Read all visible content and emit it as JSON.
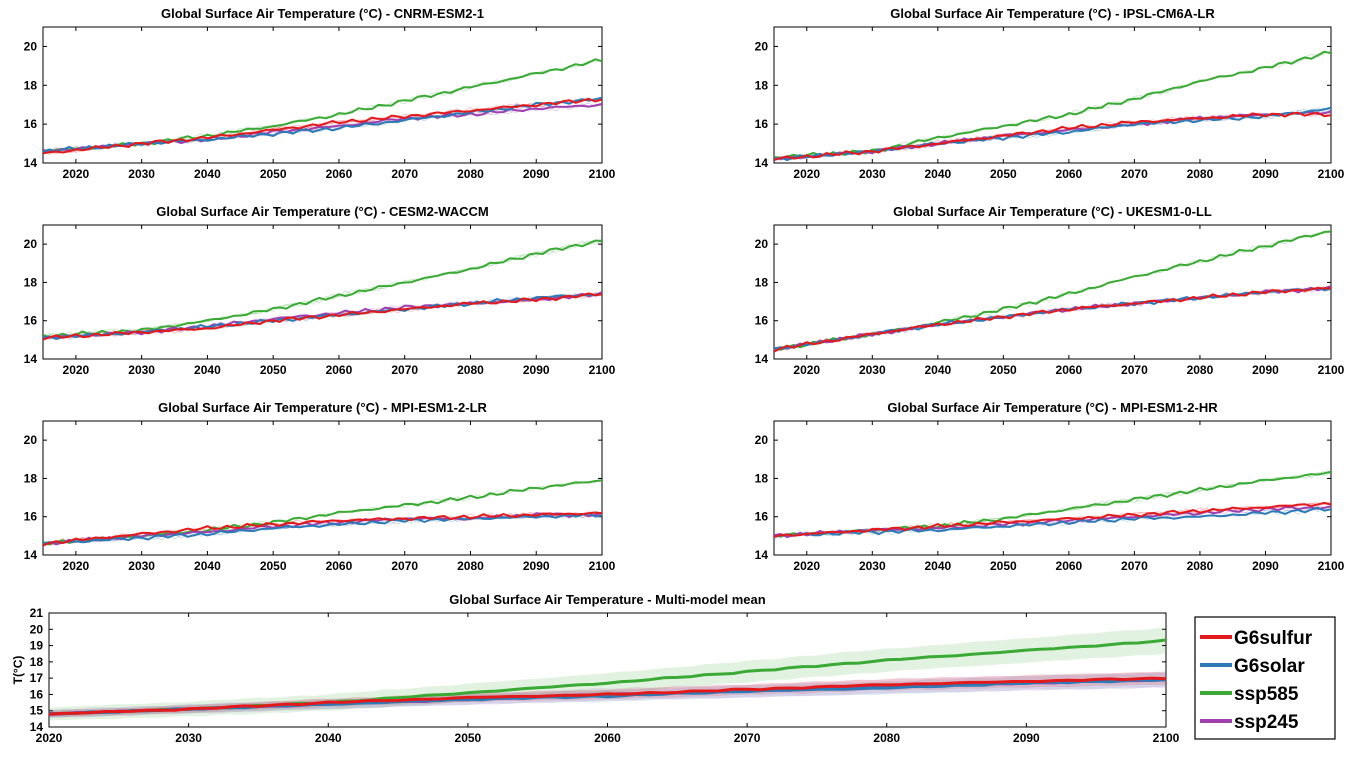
{
  "colors": {
    "G6sulfur": "#e31a1c",
    "G6solar": "#2c7bb6",
    "ssp585": "#3aaa35",
    "ssp245": "#a040b0"
  },
  "legend": [
    "G6sulfur",
    "G6solar",
    "ssp585",
    "ssp245"
  ],
  "chart_data": [
    {
      "type": "line",
      "title": "Global Surface Air Temperature (°C) - CNRM-ESM2-1",
      "xlim": [
        2015,
        2100
      ],
      "ylim": [
        14,
        21
      ],
      "xticks": [
        2020,
        2030,
        2040,
        2050,
        2060,
        2070,
        2080,
        2090,
        2100
      ],
      "yticks": [
        14,
        16,
        18,
        20
      ],
      "x": [
        2015,
        2030,
        2040,
        2050,
        2060,
        2070,
        2080,
        2090,
        2100
      ],
      "series": [
        {
          "name": "G6sulfur",
          "values": [
            14.5,
            15.0,
            15.3,
            15.7,
            16.1,
            16.4,
            16.7,
            17.0,
            17.3
          ]
        },
        {
          "name": "G6solar",
          "values": [
            14.6,
            15.0,
            15.2,
            15.5,
            15.8,
            16.2,
            16.6,
            17.0,
            17.3
          ]
        },
        {
          "name": "ssp585",
          "values": [
            14.6,
            15.0,
            15.4,
            15.9,
            16.5,
            17.2,
            17.9,
            18.6,
            19.3
          ]
        },
        {
          "name": "ssp245",
          "values": [
            14.6,
            15.0,
            15.2,
            15.6,
            15.9,
            16.3,
            16.5,
            16.8,
            17.0
          ]
        }
      ]
    },
    {
      "type": "line",
      "title": "Global Surface Air Temperature (°C) - IPSL-CM6A-LR",
      "xlim": [
        2015,
        2100
      ],
      "ylim": [
        14,
        21
      ],
      "xticks": [
        2020,
        2030,
        2040,
        2050,
        2060,
        2070,
        2080,
        2090,
        2100
      ],
      "yticks": [
        14,
        16,
        18,
        20
      ],
      "x": [
        2015,
        2030,
        2040,
        2050,
        2060,
        2070,
        2080,
        2090,
        2100
      ],
      "series": [
        {
          "name": "G6sulfur",
          "values": [
            14.2,
            14.6,
            15.0,
            15.4,
            15.8,
            16.1,
            16.3,
            16.5,
            16.5
          ]
        },
        {
          "name": "G6solar",
          "values": [
            14.2,
            14.6,
            15.0,
            15.3,
            15.6,
            16.0,
            16.2,
            16.4,
            16.8
          ]
        },
        {
          "name": "ssp585",
          "values": [
            14.3,
            14.6,
            15.3,
            15.9,
            16.5,
            17.3,
            18.2,
            18.9,
            19.7
          ]
        },
        {
          "name": "ssp245",
          "values": [
            14.2,
            14.6,
            15.0,
            15.4,
            15.7,
            16.0,
            16.3,
            16.5,
            16.6
          ]
        }
      ]
    },
    {
      "type": "line",
      "title": "Global Surface Air Temperature (°C) - CESM2-WACCM",
      "xlim": [
        2015,
        2100
      ],
      "ylim": [
        14,
        21
      ],
      "xticks": [
        2020,
        2030,
        2040,
        2050,
        2060,
        2070,
        2080,
        2090,
        2100
      ],
      "yticks": [
        14,
        16,
        18,
        20
      ],
      "x": [
        2015,
        2030,
        2040,
        2050,
        2060,
        2070,
        2080,
        2090,
        2100
      ],
      "series": [
        {
          "name": "G6sulfur",
          "values": [
            15.1,
            15.4,
            15.6,
            16.0,
            16.3,
            16.6,
            16.9,
            17.1,
            17.4
          ]
        },
        {
          "name": "G6solar",
          "values": [
            15.1,
            15.4,
            15.7,
            16.0,
            16.3,
            16.6,
            16.9,
            17.2,
            17.4
          ]
        },
        {
          "name": "ssp585",
          "values": [
            15.2,
            15.5,
            16.0,
            16.6,
            17.3,
            18.0,
            18.7,
            19.5,
            20.2
          ]
        },
        {
          "name": "ssp245",
          "values": [
            15.1,
            15.4,
            15.7,
            16.1,
            16.4,
            16.7,
            16.9,
            17.1,
            17.4
          ]
        }
      ]
    },
    {
      "type": "line",
      "title": "Global Surface Air Temperature (°C) - UKESM1-0-LL",
      "xlim": [
        2015,
        2100
      ],
      "ylim": [
        14,
        21
      ],
      "xticks": [
        2020,
        2030,
        2040,
        2050,
        2060,
        2070,
        2080,
        2090,
        2100
      ],
      "yticks": [
        14,
        16,
        18,
        20
      ],
      "x": [
        2015,
        2030,
        2040,
        2050,
        2060,
        2070,
        2080,
        2090,
        2100
      ],
      "series": [
        {
          "name": "G6sulfur",
          "values": [
            14.5,
            15.3,
            15.8,
            16.2,
            16.6,
            16.9,
            17.2,
            17.5,
            17.7
          ]
        },
        {
          "name": "G6solar",
          "values": [
            14.5,
            15.3,
            15.8,
            16.2,
            16.6,
            16.9,
            17.2,
            17.5,
            17.7
          ]
        },
        {
          "name": "ssp585",
          "values": [
            14.5,
            15.3,
            15.9,
            16.6,
            17.4,
            18.3,
            19.1,
            19.9,
            20.7
          ]
        },
        {
          "name": "ssp245",
          "values": [
            14.5,
            15.3,
            15.8,
            16.2,
            16.6,
            16.9,
            17.2,
            17.5,
            17.7
          ]
        }
      ]
    },
    {
      "type": "line",
      "title": "Global Surface Air Temperature (°C) - MPI-ESM1-2-LR",
      "xlim": [
        2015,
        2100
      ],
      "ylim": [
        14,
        21
      ],
      "xticks": [
        2020,
        2030,
        2040,
        2050,
        2060,
        2070,
        2080,
        2090,
        2100
      ],
      "yticks": [
        14,
        16,
        18,
        20
      ],
      "x": [
        2015,
        2030,
        2040,
        2050,
        2060,
        2070,
        2080,
        2090,
        2100
      ],
      "series": [
        {
          "name": "G6sulfur",
          "values": [
            14.6,
            15.1,
            15.4,
            15.6,
            15.8,
            15.9,
            16.0,
            16.1,
            16.2
          ]
        },
        {
          "name": "G6solar",
          "values": [
            14.6,
            14.9,
            15.1,
            15.4,
            15.6,
            15.8,
            15.9,
            16.0,
            16.1
          ]
        },
        {
          "name": "ssp585",
          "values": [
            14.6,
            15.0,
            15.3,
            15.7,
            16.2,
            16.6,
            17.0,
            17.5,
            17.9
          ]
        },
        {
          "name": "ssp245",
          "values": [
            14.6,
            15.0,
            15.2,
            15.5,
            15.7,
            15.9,
            15.9,
            16.1,
            16.1
          ]
        }
      ]
    },
    {
      "type": "line",
      "title": "Global Surface Air Temperature (°C) - MPI-ESM1-2-HR",
      "xlim": [
        2015,
        2100
      ],
      "ylim": [
        14,
        21
      ],
      "xticks": [
        2020,
        2030,
        2040,
        2050,
        2060,
        2070,
        2080,
        2090,
        2100
      ],
      "yticks": [
        14,
        16,
        18,
        20
      ],
      "x": [
        2015,
        2030,
        2040,
        2050,
        2060,
        2070,
        2080,
        2090,
        2100
      ],
      "series": [
        {
          "name": "G6sulfur",
          "values": [
            15.0,
            15.3,
            15.5,
            15.7,
            15.9,
            16.1,
            16.3,
            16.5,
            16.7
          ]
        },
        {
          "name": "G6solar",
          "values": [
            15.0,
            15.2,
            15.3,
            15.5,
            15.7,
            15.9,
            16.0,
            16.2,
            16.4
          ]
        },
        {
          "name": "ssp585",
          "values": [
            15.0,
            15.3,
            15.5,
            15.9,
            16.4,
            16.9,
            17.4,
            17.9,
            18.3
          ]
        },
        {
          "name": "ssp245",
          "values": [
            15.0,
            15.3,
            15.4,
            15.6,
            15.8,
            16.0,
            16.2,
            16.4,
            16.5
          ]
        }
      ]
    },
    {
      "type": "line",
      "title": "Global Surface Air Temperature - Multi-model mean",
      "ylabel": "T(°C)",
      "xlim": [
        2020,
        2100
      ],
      "ylim": [
        14,
        21
      ],
      "xticks": [
        2020,
        2030,
        2040,
        2050,
        2060,
        2070,
        2080,
        2090,
        2100
      ],
      "yticks": [
        14,
        15,
        16,
        17,
        18,
        19,
        20,
        21
      ],
      "x": [
        2020,
        2030,
        2040,
        2050,
        2060,
        2070,
        2080,
        2090,
        2100
      ],
      "series": [
        {
          "name": "G6sulfur",
          "values": [
            14.8,
            15.1,
            15.5,
            15.8,
            16.0,
            16.3,
            16.6,
            16.8,
            17.0
          ],
          "spread": 0.4
        },
        {
          "name": "G6solar",
          "values": [
            14.8,
            15.1,
            15.4,
            15.7,
            15.9,
            16.2,
            16.4,
            16.7,
            16.9
          ],
          "spread": 0.45
        },
        {
          "name": "ssp585",
          "values": [
            14.8,
            15.1,
            15.5,
            16.1,
            16.7,
            17.4,
            18.1,
            18.7,
            19.3
          ],
          "spread": 0.8
        },
        {
          "name": "ssp245",
          "values": [
            14.8,
            15.1,
            15.4,
            15.7,
            16.0,
            16.2,
            16.5,
            16.7,
            16.9
          ],
          "spread": 0.5
        }
      ]
    }
  ]
}
